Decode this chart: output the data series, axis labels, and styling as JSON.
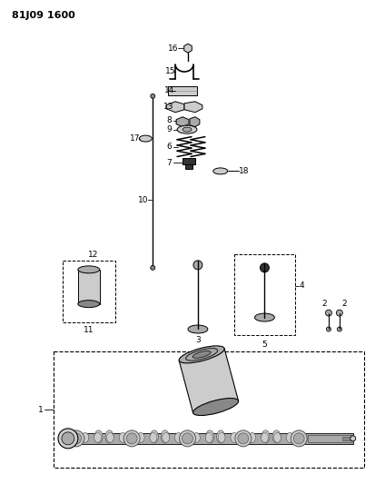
{
  "title": "81J09 1600",
  "bg_color": "#ffffff",
  "lc": "#000000",
  "gray1": "#cccccc",
  "gray2": "#aaaaaa",
  "gray3": "#888888",
  "gray4": "#555555",
  "darkgray": "#333333"
}
